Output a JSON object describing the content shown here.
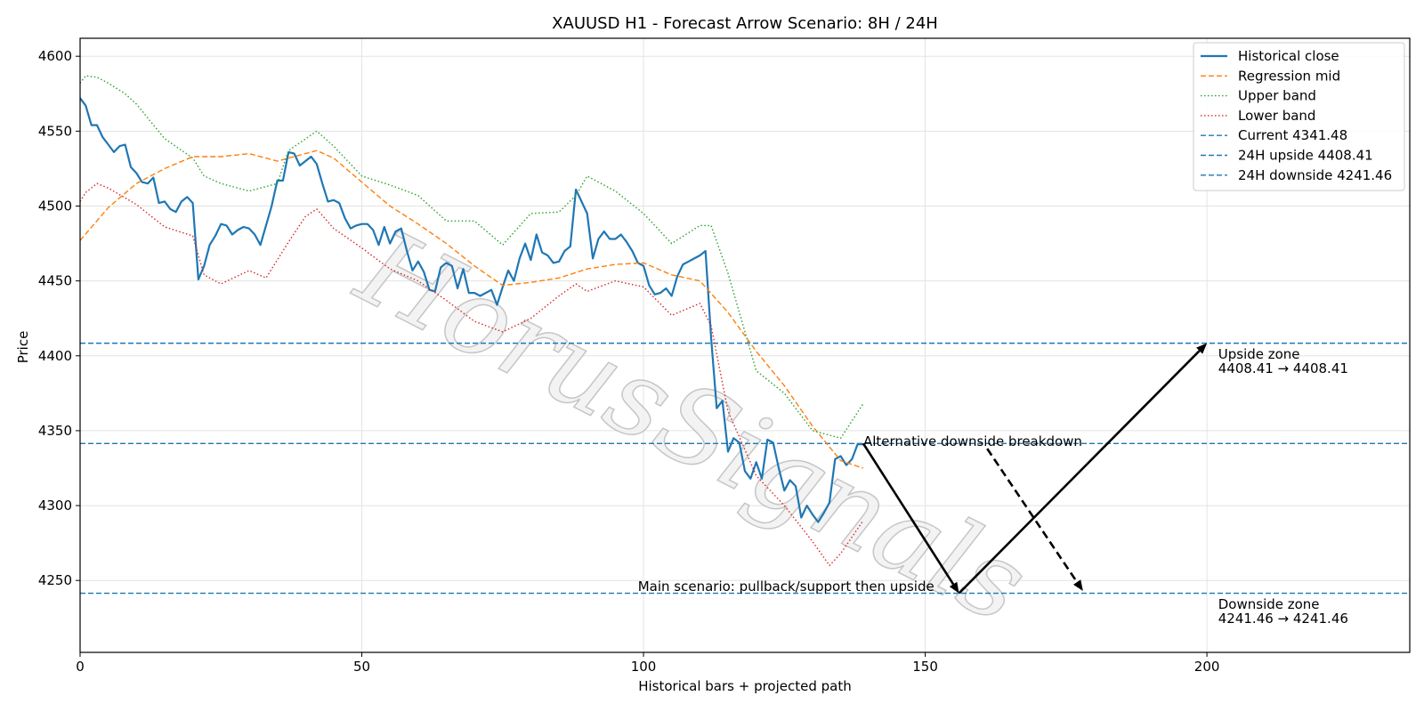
{
  "chart_data": {
    "type": "line",
    "title": "XAUUSD H1 - Forecast Arrow Scenario: 8H / 24H",
    "xlabel": "Historical bars + projected path",
    "ylabel": "Price",
    "xlim": [
      0,
      236
    ],
    "ylim": [
      4202,
      4612
    ],
    "xticks": [
      0,
      50,
      100,
      150,
      200
    ],
    "yticks": [
      4250,
      4300,
      4350,
      4400,
      4450,
      4500,
      4550,
      4600
    ],
    "grid": true,
    "legend_position": "top-right",
    "watermark": "HorusSignals",
    "series": [
      {
        "name": "Historical close",
        "style": "solid",
        "color": "#1f77b4",
        "x": [
          0,
          1,
          2,
          3,
          4,
          5,
          6,
          7,
          8,
          9,
          10,
          11,
          12,
          13,
          14,
          15,
          16,
          17,
          18,
          19,
          20,
          21,
          22,
          23,
          24,
          25,
          26,
          27,
          28,
          29,
          30,
          31,
          32,
          33,
          34,
          35,
          36,
          37,
          38,
          39,
          40,
          41,
          42,
          43,
          44,
          45,
          46,
          47,
          48,
          49,
          50,
          51,
          52,
          53,
          54,
          55,
          56,
          57,
          58,
          59,
          60,
          61,
          62,
          63,
          64,
          65,
          66,
          67,
          68,
          69,
          70,
          71,
          72,
          73,
          74,
          75,
          76,
          77,
          78,
          79,
          80,
          81,
          82,
          83,
          84,
          85,
          86,
          87,
          88,
          89,
          90,
          91,
          92,
          93,
          94,
          95,
          96,
          97,
          98,
          99,
          100,
          101,
          102,
          103,
          104,
          105,
          106,
          107,
          108,
          109,
          110,
          111,
          112,
          113,
          114,
          115,
          116,
          117,
          118,
          119,
          120,
          121,
          122,
          123,
          124,
          125,
          126,
          127,
          128,
          129,
          130,
          131,
          132,
          133,
          134,
          135,
          136,
          137,
          138,
          139
        ],
        "y": [
          4572,
          4567,
          4554,
          4554,
          4546,
          4541,
          4536,
          4540,
          4541,
          4526,
          4522,
          4516,
          4515,
          4519,
          4502,
          4503,
          4498,
          4496,
          4503,
          4506,
          4502,
          4451,
          4460,
          4474,
          4480,
          4488,
          4487,
          4481,
          4484,
          4486,
          4485,
          4481,
          4474,
          4487,
          4500,
          4517,
          4517,
          4536,
          4535,
          4527,
          4530,
          4533,
          4528,
          4515,
          4503,
          4504,
          4502,
          4492,
          4485,
          4487,
          4488,
          4488,
          4484,
          4474,
          4486,
          4475,
          4483,
          4485,
          4470,
          4457,
          4463,
          4456,
          4444,
          4443,
          4459,
          4462,
          4460,
          4445,
          4458,
          4442,
          4442,
          4440,
          4442,
          4444,
          4434,
          4446,
          4457,
          4450,
          4465,
          4475,
          4464,
          4481,
          4469,
          4467,
          4462,
          4463,
          4470,
          4473,
          4511,
          4503,
          4495,
          4465,
          4478,
          4483,
          4478,
          4478,
          4481,
          4476,
          4470,
          4462,
          4460,
          4447,
          4441,
          4442,
          4445,
          4440,
          4453,
          4461,
          4463,
          4465,
          4467,
          4470,
          4412,
          4365,
          4370,
          4336,
          4345,
          4342,
          4323,
          4318,
          4329,
          4318,
          4344,
          4342,
          4325,
          4310,
          4317,
          4313,
          4292,
          4300,
          4294,
          4289,
          4295,
          4302,
          4331,
          4333,
          4327,
          4331,
          4341,
          4341
        ]
      },
      {
        "name": "Regression mid",
        "style": "dashed",
        "color": "#ff7f0e",
        "x": [
          0,
          5,
          10,
          15,
          20,
          25,
          30,
          35,
          40,
          42,
          45,
          50,
          55,
          60,
          65,
          70,
          75,
          80,
          85,
          90,
          95,
          100,
          105,
          110,
          115,
          120,
          125,
          130,
          135,
          139
        ],
        "y": [
          4477,
          4499,
          4515,
          4525,
          4533,
          4533,
          4535,
          4530,
          4535,
          4537,
          4532,
          4516,
          4500,
          4488,
          4475,
          4460,
          4447,
          4449,
          4452,
          4458,
          4461,
          4462,
          4454,
          4450,
          4429,
          4403,
          4380,
          4353,
          4330,
          4325
        ]
      },
      {
        "name": "Upper band",
        "style": "dotted",
        "color": "#2ca02c",
        "x": [
          0,
          1,
          3,
          5,
          8,
          10,
          15,
          20,
          22,
          25,
          30,
          35,
          37,
          42,
          45,
          50,
          55,
          60,
          65,
          70,
          75,
          80,
          85,
          88,
          90,
          95,
          100,
          105,
          110,
          112,
          115,
          120,
          125,
          130,
          135,
          139
        ],
        "y": [
          4582,
          4587,
          4586,
          4582,
          4575,
          4568,
          4545,
          4532,
          4520,
          4515,
          4510,
          4515,
          4537,
          4550,
          4540,
          4520,
          4514,
          4507,
          4490,
          4490,
          4474,
          4495,
          4496,
          4507,
          4520,
          4510,
          4495,
          4475,
          4487,
          4487,
          4455,
          4390,
          4375,
          4350,
          4345,
          4368
        ]
      },
      {
        "name": "Lower band",
        "style": "dotted",
        "color": "#d62728",
        "x": [
          0,
          1,
          3,
          5,
          10,
          15,
          20,
          22,
          25,
          30,
          33,
          37,
          40,
          42,
          45,
          50,
          55,
          60,
          65,
          70,
          75,
          80,
          85,
          88,
          90,
          95,
          100,
          105,
          110,
          112,
          115,
          120,
          125,
          130,
          133,
          135,
          139
        ],
        "y": [
          4503,
          4509,
          4515,
          4512,
          4501,
          4486,
          4480,
          4454,
          4448,
          4457,
          4452,
          4476,
          4493,
          4498,
          4485,
          4472,
          4458,
          4450,
          4437,
          4423,
          4416,
          4425,
          4440,
          4448,
          4443,
          4450,
          4446,
          4427,
          4435,
          4420,
          4363,
          4320,
          4300,
          4276,
          4260,
          4268,
          4290
        ]
      }
    ],
    "levels": [
      {
        "name": "Current 4341.48",
        "value": 4341.48,
        "color": "#1f77b4"
      },
      {
        "name": "24H upside 4408.41",
        "value": 4408.41,
        "color": "#1f77b4"
      },
      {
        "name": "24H downside 4241.46",
        "value": 4241.46,
        "color": "#1f77b4"
      }
    ],
    "arrows": [
      {
        "style": "solid",
        "color": "#000000",
        "from": [
          139,
          4341.48
        ],
        "to": [
          156,
          4241.46
        ]
      },
      {
        "style": "solid",
        "color": "#000000",
        "from": [
          156,
          4241.46
        ],
        "to": [
          200,
          4408.41
        ]
      },
      {
        "style": "dashed",
        "color": "#000000",
        "from": [
          161,
          4338
        ],
        "to": [
          178,
          4243
        ]
      }
    ],
    "annotations": [
      {
        "text": "Alternative downside breakdown",
        "x": 139,
        "y": 4340
      },
      {
        "text": "Main scenario: pullback/support then upside",
        "x": 99,
        "y": 4243
      },
      {
        "lines": [
          "Upside zone",
          "4408.41 → 4408.41"
        ],
        "x": 202,
        "y": 4398
      },
      {
        "lines": [
          "Downside zone",
          "4241.46 → 4241.46"
        ],
        "x": 202,
        "y": 4231
      }
    ]
  }
}
